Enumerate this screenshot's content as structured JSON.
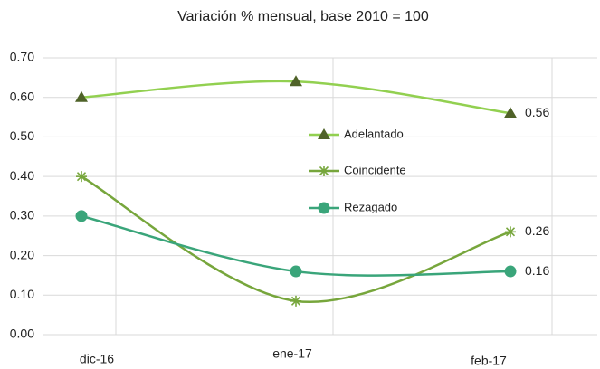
{
  "chart_data": {
    "type": "line",
    "title": "Variación % mensual, base 2010 = 100",
    "categories": [
      "dic-16",
      "ene-17",
      "feb-17"
    ],
    "series": [
      {
        "name": "Adelantado",
        "color": "#92d050",
        "marker_color": "#4f6228",
        "marker": "triangle",
        "values": [
          0.6,
          0.64,
          0.56
        ]
      },
      {
        "name": "Coincidente",
        "color": "#77a63c",
        "marker_color": "#77a63c",
        "marker": "star",
        "values": [
          0.4,
          0.085,
          0.26
        ]
      },
      {
        "name": "Rezagado",
        "color": "#3aa57a",
        "marker_color": "#3aa57a",
        "marker": "circle",
        "values": [
          0.3,
          0.16,
          0.16
        ]
      }
    ],
    "ylim": [
      0,
      0.7
    ],
    "yticks": [
      {
        "value": 0,
        "label": "0.00"
      },
      {
        "value": 0.1,
        "label": "0.10"
      },
      {
        "value": 0.2,
        "label": "0.20"
      },
      {
        "value": 0.3,
        "label": "0.30"
      },
      {
        "value": 0.4,
        "label": "0.40"
      },
      {
        "value": 0.5,
        "label": "0.50"
      },
      {
        "value": 0.6,
        "label": "0.60"
      },
      {
        "value": 0.7,
        "label": "0.70"
      }
    ],
    "grid": true,
    "smooth": true,
    "data_labels": "last",
    "legend": "center"
  }
}
